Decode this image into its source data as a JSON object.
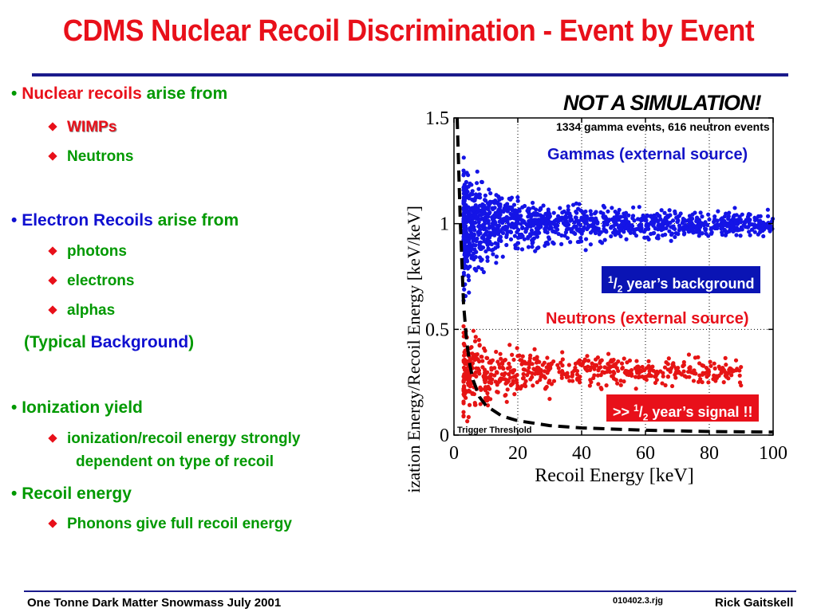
{
  "slide": {
    "title": "CDMS Nuclear Recoil Discrimination - Event by Event"
  },
  "bullets": {
    "nuclear": {
      "hl": "Nuclear recoils",
      "rest": " arise from"
    },
    "nuclear_items": [
      "WIMPs",
      "Neutrons"
    ],
    "electron": {
      "hl": "Electron Recoils",
      "rest": " arise from"
    },
    "electron_items": [
      "photons",
      "electrons",
      "alphas"
    ],
    "typical": {
      "open": "(Typical ",
      "hl": "Background",
      "close": ")"
    },
    "ionization": "Ionization yield",
    "ionization_item_1": "ionization/recoil energy strongly",
    "ionization_item_2": "dependent on type of recoil",
    "recoil": "Recoil energy",
    "recoil_item": "Phonons give full recoil energy"
  },
  "chart_labels": {
    "not_sim": "NOT A SIMULATION!",
    "counts": "1334 gamma events, 616 neutron events",
    "gammas": "Gammas (external source)",
    "neutrons": "Neutrons (external source)",
    "bg_box_sup": "1",
    "bg_box_sub": "2",
    "bg_box_text": " year’s background",
    "sig_box_pre": ">> ",
    "sig_box_sup": "1",
    "sig_box_sub": "2",
    "sig_box_text": " year’s signal !!",
    "trigger": "Trigger Threshold"
  },
  "footer": {
    "left": "One Tonne Dark Matter Snowmass July 2001",
    "code": "010402.3.rjg",
    "right": "Rick Gaitskell"
  },
  "chart_data": {
    "type": "scatter",
    "xlabel": "Recoil Energy [keV]",
    "ylabel": "Ionization Energy/Recoil Energy [keV/keV]",
    "xlim": [
      0,
      100
    ],
    "ylim": [
      0,
      1.5
    ],
    "x_ticks": [
      "0",
      "20",
      "40",
      "60",
      "80",
      "100"
    ],
    "y_ticks": [
      "0",
      "0.5",
      "1",
      "1.5"
    ],
    "grid": true,
    "series": [
      {
        "color": "#1414e6",
        "count": 1334,
        "band_center_y": 1.0,
        "x_range": [
          3,
          100
        ]
      },
      {
        "color": "#e61414",
        "count": 616,
        "band_center_y": 0.3,
        "x_range": [
          3,
          90
        ]
      }
    ],
    "threshold_curve": {
      "x": [
        1,
        2,
        3,
        4,
        5,
        6,
        8,
        10,
        15,
        20,
        30,
        40,
        60,
        80,
        100
      ],
      "y": [
        1.6,
        1.0,
        0.62,
        0.44,
        0.33,
        0.26,
        0.18,
        0.14,
        0.09,
        0.068,
        0.045,
        0.034,
        0.023,
        0.017,
        0.014
      ]
    },
    "colors": {
      "gamma": "#1414e6",
      "neutron": "#e61414",
      "threshold": "#000000"
    }
  }
}
